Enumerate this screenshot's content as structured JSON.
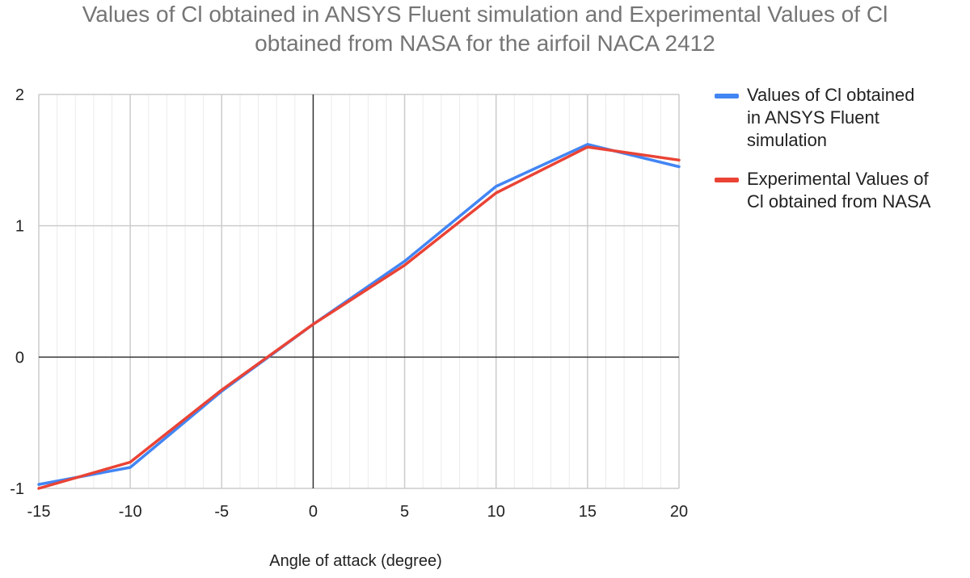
{
  "chart_data": {
    "type": "line",
    "title": "Values of Cl obtained in ANSYS Fluent simulation and Experimental Values of Cl obtained from NASA for the airfoil NACA 2412",
    "title_lines": [
      "Values of Cl obtained in ANSYS Fluent simulation and Experimental Values of Cl",
      "obtained from NASA for the airfoil NACA 2412"
    ],
    "xlabel": "Angle of attack (degree)",
    "ylabel": "",
    "xlim": [
      -15,
      20
    ],
    "ylim": [
      -1,
      2
    ],
    "x_ticks": [
      "-15",
      "-10",
      "-5",
      "0",
      "5",
      "10",
      "15",
      "20"
    ],
    "y_ticks": [
      "2",
      "1",
      "0",
      "-1"
    ],
    "grid": true,
    "legend_position": "right",
    "series": [
      {
        "name": "Values of Cl obtained in ANSYS Fluent simulation",
        "name_lines": [
          "Values of Cl obtained",
          "in ANSYS Fluent",
          "simulation"
        ],
        "color": "#4285F4",
        "x": [
          -15,
          -10,
          -5,
          0,
          5,
          10,
          15,
          20
        ],
        "y": [
          -0.97,
          -0.84,
          -0.26,
          0.25,
          0.73,
          1.3,
          1.62,
          1.45
        ]
      },
      {
        "name": "Experimental Values of Cl obtained from NASA",
        "name_lines": [
          "Experimental Values of",
          "Cl obtained from NASA"
        ],
        "color": "#EA4335",
        "x": [
          -15,
          -10,
          -5,
          0,
          5,
          10,
          15,
          20
        ],
        "y": [
          -1.0,
          -0.8,
          -0.25,
          0.25,
          0.7,
          1.25,
          1.6,
          1.5
        ]
      }
    ]
  }
}
